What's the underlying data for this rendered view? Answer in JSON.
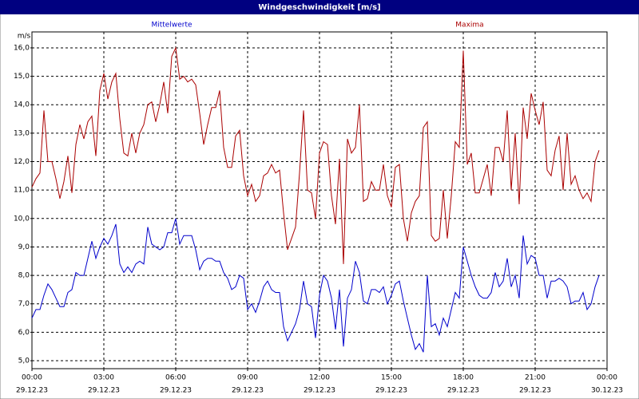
{
  "chart_data": {
    "type": "line",
    "title": "Windgeschwindigkeit [m/s]",
    "y_label": "m/s",
    "x": [
      0,
      10,
      20,
      30,
      40,
      50,
      60,
      70,
      80,
      90,
      100,
      110,
      120,
      130,
      140,
      150,
      160,
      170,
      180,
      190,
      200,
      210,
      220,
      230,
      240,
      250,
      260,
      270,
      280,
      290,
      300,
      310,
      320,
      330,
      340,
      350,
      360,
      370,
      380,
      390,
      400,
      410,
      420,
      430,
      440,
      450,
      460,
      470,
      480,
      490,
      500,
      510,
      520,
      530,
      540,
      550,
      560,
      570,
      580,
      590,
      600,
      610,
      620,
      630,
      640,
      650,
      660,
      670,
      680,
      690,
      700,
      710,
      720,
      730,
      740,
      750,
      760,
      770,
      780,
      790,
      800,
      810,
      820,
      830,
      840,
      850,
      860,
      870,
      880,
      890,
      900,
      910,
      920,
      930,
      940,
      950,
      960,
      970,
      980,
      990,
      1000,
      1010,
      1020,
      1030,
      1040,
      1050,
      1060,
      1070,
      1080,
      1090,
      1100,
      1110,
      1120,
      1130,
      1140,
      1150,
      1160,
      1170,
      1180,
      1190,
      1200,
      1210,
      1220,
      1230,
      1240,
      1250,
      1260,
      1270,
      1280,
      1290,
      1300,
      1310,
      1320,
      1330,
      1340,
      1350,
      1360,
      1370,
      1380,
      1390,
      1400,
      1410,
      1420
    ],
    "series": [
      {
        "name": "Mittelwerte",
        "color": "#0000cc",
        "values": [
          6.5,
          6.8,
          6.8,
          7.3,
          7.7,
          7.5,
          7.2,
          6.9,
          6.9,
          7.4,
          7.5,
          8.1,
          8.0,
          8.0,
          8.6,
          9.2,
          8.6,
          9.0,
          9.3,
          9.1,
          9.4,
          9.8,
          8.4,
          8.1,
          8.3,
          8.1,
          8.4,
          8.5,
          8.4,
          9.7,
          9.1,
          9.0,
          8.9,
          9.0,
          9.5,
          9.5,
          10.0,
          9.1,
          9.4,
          9.4,
          9.4,
          8.9,
          8.2,
          8.5,
          8.6,
          8.6,
          8.5,
          8.5,
          8.1,
          7.9,
          7.5,
          7.6,
          8.0,
          7.9,
          6.8,
          7.0,
          6.7,
          7.1,
          7.6,
          7.8,
          7.5,
          7.4,
          7.4,
          6.2,
          5.7,
          6.0,
          6.3,
          6.8,
          7.8,
          7.0,
          6.9,
          5.8,
          7.3,
          8.0,
          7.8,
          7.2,
          6.1,
          7.5,
          5.5,
          7.2,
          7.5,
          8.5,
          8.1,
          7.1,
          7.0,
          7.5,
          7.5,
          7.4,
          7.6,
          7.0,
          7.3,
          7.7,
          7.8,
          7.1,
          6.5,
          5.9,
          5.4,
          5.6,
          5.3,
          8.0,
          6.2,
          6.3,
          5.9,
          6.5,
          6.2,
          6.8,
          7.4,
          7.2,
          9.0,
          8.5,
          8.0,
          7.6,
          7.3,
          7.2,
          7.2,
          7.4,
          8.1,
          7.6,
          7.8,
          8.6,
          7.6,
          8.0,
          7.2,
          9.4,
          8.4,
          8.7,
          8.6,
          8.0,
          8.0,
          7.2,
          7.8,
          7.8,
          7.9,
          7.8,
          7.6,
          7.0,
          7.1,
          7.1,
          7.4,
          6.8,
          7.0,
          7.6,
          8.0
        ]
      },
      {
        "name": "Maxima",
        "color": "#aa0000",
        "values": [
          11.1,
          11.4,
          11.6,
          13.8,
          12.0,
          12.0,
          11.4,
          10.7,
          11.3,
          12.2,
          10.9,
          12.6,
          13.3,
          12.8,
          13.4,
          13.6,
          12.2,
          14.5,
          15.1,
          14.2,
          14.8,
          15.1,
          13.5,
          12.3,
          12.2,
          13.0,
          12.3,
          13.0,
          13.3,
          14.0,
          14.1,
          13.4,
          14.0,
          14.8,
          13.7,
          15.7,
          16.0,
          14.9,
          15.0,
          14.8,
          14.9,
          14.7,
          13.7,
          12.6,
          13.3,
          13.9,
          13.9,
          14.5,
          12.5,
          11.8,
          11.8,
          12.9,
          13.1,
          11.5,
          10.8,
          11.2,
          10.6,
          10.8,
          11.5,
          11.6,
          11.9,
          11.6,
          11.7,
          10.2,
          8.9,
          9.3,
          9.7,
          11.6,
          13.8,
          11.0,
          10.9,
          10.0,
          12.3,
          12.7,
          12.6,
          10.8,
          9.8,
          12.1,
          8.4,
          12.8,
          12.3,
          12.5,
          14.0,
          10.6,
          10.7,
          11.3,
          11.0,
          11.0,
          11.9,
          10.8,
          10.4,
          11.8,
          11.9,
          10.0,
          9.2,
          10.2,
          10.6,
          10.8,
          13.2,
          13.4,
          9.4,
          9.2,
          9.3,
          11.0,
          9.3,
          10.8,
          12.7,
          12.5,
          15.9,
          11.9,
          12.3,
          10.9,
          10.9,
          11.4,
          11.9,
          10.8,
          12.5,
          12.5,
          12.0,
          13.8,
          11.0,
          13.0,
          10.5,
          13.9,
          12.8,
          14.4,
          13.8,
          13.3,
          14.1,
          11.7,
          11.5,
          12.4,
          12.9,
          11.0,
          13.0,
          11.2,
          11.5,
          11.0,
          10.7,
          10.9,
          10.6,
          12.0,
          12.4
        ]
      }
    ],
    "xlim": [
      0,
      1440
    ],
    "xticks": [
      {
        "value": 0,
        "label": "00:00",
        "date": "29.12.23"
      },
      {
        "value": 180,
        "label": "03:00",
        "date": "29.12.23"
      },
      {
        "value": 360,
        "label": "06:00",
        "date": "29.12.23"
      },
      {
        "value": 540,
        "label": "09:00",
        "date": "29.12.23"
      },
      {
        "value": 720,
        "label": "12:00",
        "date": "29.12.23"
      },
      {
        "value": 900,
        "label": "15:00",
        "date": "29.12.23"
      },
      {
        "value": 1080,
        "label": "18:00",
        "date": "29.12.23"
      },
      {
        "value": 1260,
        "label": "21:00",
        "date": "29.12.23"
      },
      {
        "value": 1440,
        "label": "00:00",
        "date": "30.12.23"
      }
    ],
    "ylim": [
      4.72,
      16.56
    ],
    "yticks": [
      {
        "value": 5,
        "label": "5,0"
      },
      {
        "value": 6,
        "label": "6,0"
      },
      {
        "value": 7,
        "label": "7,0"
      },
      {
        "value": 8,
        "label": "8,0"
      },
      {
        "value": 9,
        "label": "9,0"
      },
      {
        "value": 10,
        "label": "10,0"
      },
      {
        "value": 11,
        "label": "11,0"
      },
      {
        "value": 12,
        "label": "12,0"
      },
      {
        "value": 13,
        "label": "13,0"
      },
      {
        "value": 14,
        "label": "14,0"
      },
      {
        "value": 15,
        "label": "15,0"
      },
      {
        "value": 16,
        "label": "16,0"
      }
    ],
    "grid": true
  }
}
